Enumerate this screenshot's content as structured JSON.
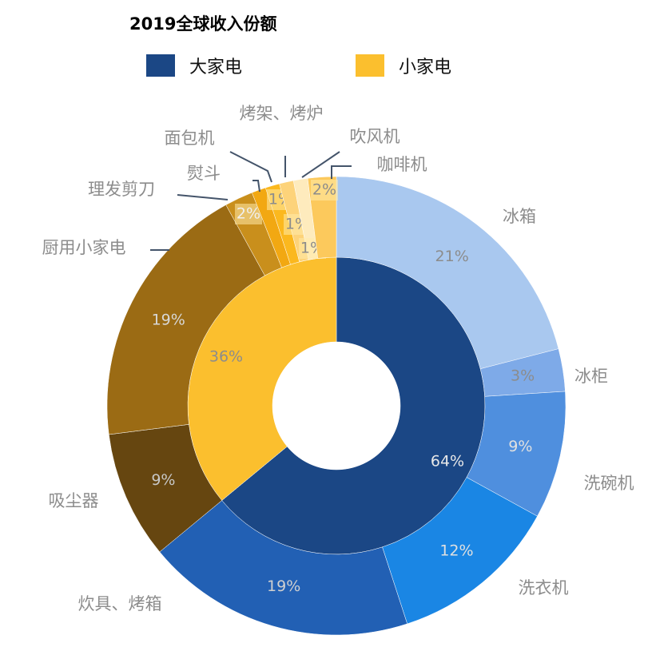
{
  "chart_data": {
    "type": "sunburst",
    "title": "2019全球收入份额",
    "legend": {
      "placement": "top",
      "entries": [
        "大家电",
        "小家电"
      ]
    },
    "inner": [
      {
        "name": "大家电",
        "value": 64,
        "label": "64%",
        "color": "#1b4785"
      },
      {
        "name": "小家电",
        "value": 36,
        "label": "36%",
        "color": "#fbbf2e"
      }
    ],
    "outer": [
      {
        "parent": "大家电",
        "name": "冰箱",
        "value": 21,
        "label": "21%",
        "color": "#a9c8ef"
      },
      {
        "parent": "大家电",
        "name": "冰柜",
        "value": 3,
        "label": "3%",
        "color": "#7eaae8"
      },
      {
        "parent": "大家电",
        "name": "洗碗机",
        "value": 9,
        "label": "9%",
        "color": "#4f8fde"
      },
      {
        "parent": "大家电",
        "name": "洗衣机",
        "value": 12,
        "label": "12%",
        "color": "#1a86e4"
      },
      {
        "parent": "大家电",
        "name": "炊具、烤箱",
        "value": 19,
        "label": "19%",
        "color": "#2260b4"
      },
      {
        "parent": "小家电",
        "name": "吸尘器",
        "value": 9,
        "label": "9%",
        "color": "#664610"
      },
      {
        "parent": "小家电",
        "name": "厨用小家电",
        "value": 19,
        "label": "19%",
        "color": "#9b6b14"
      },
      {
        "parent": "小家电",
        "name": "理发剪刀",
        "value": 2,
        "label": "2%",
        "color": "#c98f1c"
      },
      {
        "parent": "小家电",
        "name": "熨斗",
        "value": 1,
        "label": "",
        "color": "#f2a812"
      },
      {
        "parent": "小家电",
        "name": "面包机",
        "value": 1,
        "label": "1%",
        "color": "#fbb81e"
      },
      {
        "parent": "小家电",
        "name": "烤架、烤炉",
        "value": 1,
        "label": "1%",
        "color": "#fdd37a"
      },
      {
        "parent": "小家电",
        "name": "吹风机",
        "value": 1,
        "label": "1%",
        "color": "#feebbd"
      },
      {
        "parent": "小家电",
        "name": "咖啡机",
        "value": 2,
        "label": "2%",
        "color": "#fcc95c"
      }
    ]
  }
}
